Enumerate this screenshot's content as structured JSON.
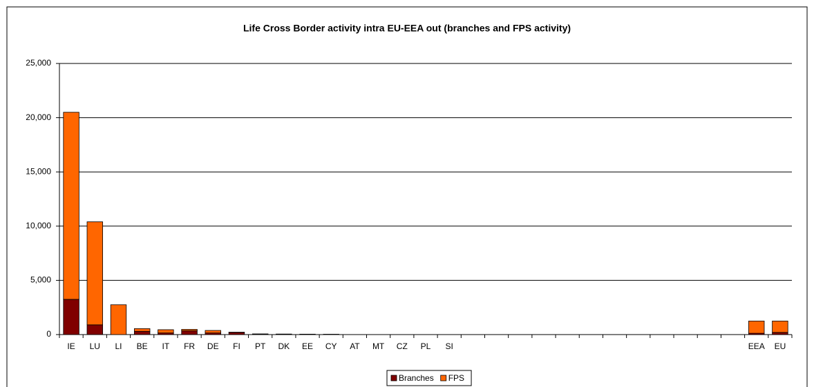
{
  "chart_data": {
    "type": "stacked_bar",
    "title": "Life Cross Border activity intra EU-EEA out (branches and FPS activity)",
    "categories": [
      "IE",
      "LU",
      "LI",
      "BE",
      "IT",
      "FR",
      "DE",
      "FI",
      "PT",
      "DK",
      "EE",
      "CY",
      "AT",
      "MT",
      "CZ",
      "PL",
      "SI",
      null,
      null,
      null,
      null,
      null,
      null,
      null,
      null,
      null,
      null,
      null,
      null,
      "EEA",
      "EU"
    ],
    "series": [
      {
        "name": "Branches",
        "color": "#800000",
        "values": [
          3250,
          900,
          0,
          300,
          150,
          350,
          150,
          200,
          50,
          40,
          20,
          20,
          0,
          0,
          0,
          0,
          0,
          null,
          null,
          null,
          null,
          null,
          null,
          null,
          null,
          null,
          null,
          null,
          null,
          120,
          200
        ]
      },
      {
        "name": "FPS",
        "color": "#ff6600",
        "values": [
          17250,
          9500,
          2750,
          250,
          300,
          130,
          230,
          20,
          10,
          10,
          20,
          10,
          0,
          0,
          0,
          0,
          0,
          null,
          null,
          null,
          null,
          null,
          null,
          null,
          null,
          null,
          null,
          null,
          null,
          1130,
          1050
        ]
      }
    ],
    "ylim": [
      0,
      25000
    ],
    "yticks": [
      0,
      {
        "value": 5000,
        "label": "5,000"
      },
      {
        "value": 10000,
        "label": "10,000"
      },
      {
        "value": 15000,
        "label": "15,000"
      },
      {
        "value": 20000,
        "label": "20,000"
      },
      {
        "value": 25000,
        "label": "25,000"
      }
    ],
    "grid": true,
    "legend": "bottom"
  }
}
